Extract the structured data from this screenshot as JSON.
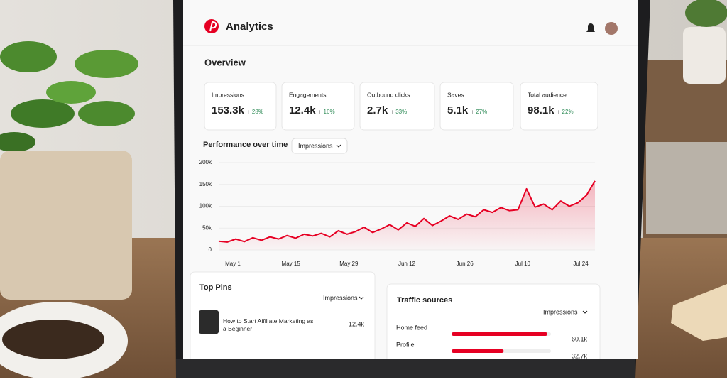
{
  "header": {
    "title": "Analytics"
  },
  "overview": {
    "title": "Overview",
    "cards": [
      {
        "label": "Impressions",
        "value": "153.3k",
        "change": "28%"
      },
      {
        "label": "Engagements",
        "value": "12.4k",
        "change": "16%"
      },
      {
        "label": "Outbound clicks",
        "value": "2.7k",
        "change": "33%"
      },
      {
        "label": "Saves",
        "value": "5.1k",
        "change": "27%"
      },
      {
        "label": "Total audience",
        "value": "98.1k",
        "change": "22%"
      }
    ]
  },
  "performance": {
    "title": "Performance over time",
    "dropdown": "Impressions",
    "chart_data": {
      "type": "line",
      "color": "#e60023",
      "grid": true,
      "ylim": [
        0,
        200000
      ],
      "yticks": [
        0,
        {
          "value": 50000,
          "label": "50k"
        },
        {
          "value": 100000,
          "label": "100k"
        },
        {
          "value": 150000,
          "label": "150k"
        },
        {
          "value": 200000,
          "label": "200k"
        }
      ],
      "xtick_labels": [
        "May 1",
        "May 15",
        "May 29",
        "Jun 12",
        "Jun 26",
        "Jul 10",
        "Jul 24"
      ],
      "values": [
        20000,
        18000,
        25000,
        19000,
        28000,
        22000,
        30000,
        25000,
        33000,
        27000,
        36000,
        32000,
        38000,
        30000,
        44000,
        36000,
        42000,
        52000,
        40000,
        48000,
        58000,
        46000,
        62000,
        54000,
        72000,
        56000,
        66000,
        78000,
        70000,
        82000,
        76000,
        92000,
        86000,
        97000,
        90000,
        92000,
        140000,
        98000,
        105000,
        92000,
        112000,
        100000,
        108000,
        125000,
        158000
      ]
    }
  },
  "top_pins": {
    "title": "Top Pins",
    "dropdown": "Impressions",
    "rows": [
      {
        "title": "How to Start Affiliate Marketing as a Beginner",
        "value": "12.4k"
      }
    ]
  },
  "traffic_sources": {
    "title": "Traffic sources",
    "dropdown": "Impressions",
    "rows": [
      {
        "name": "Home feed",
        "value": 60100,
        "value_label": "60.1k"
      },
      {
        "name": "Profile",
        "value": 32700,
        "value_label": "32.7k"
      }
    ]
  }
}
